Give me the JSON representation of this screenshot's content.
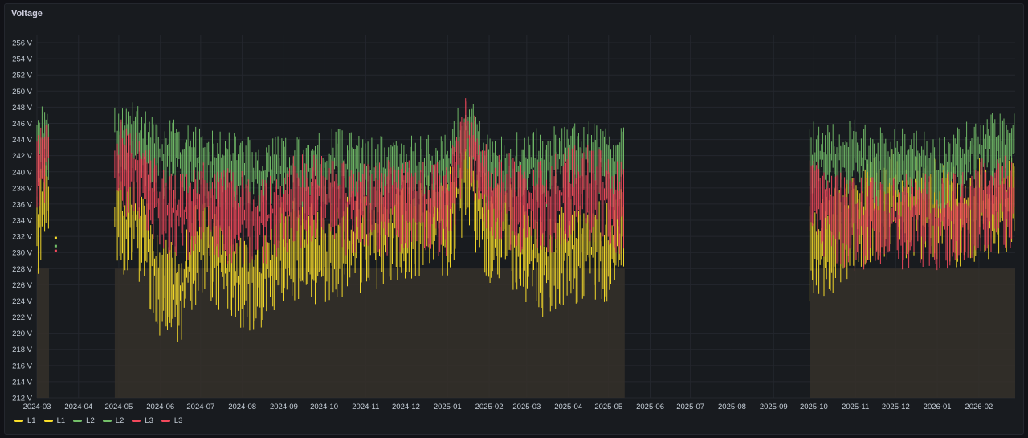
{
  "panel": {
    "title": "Voltage"
  },
  "colors": {
    "L1": "#fade2a",
    "L2": "#73bf69",
    "L3": "#f2495c",
    "fill": "#35302a",
    "grid": "#24272e",
    "bg": "#181b1f"
  },
  "chart_data": {
    "type": "line",
    "title": "Voltage",
    "xlabel": "",
    "ylabel": "",
    "y_unit": "V",
    "ylim": [
      212,
      257
    ],
    "y_ticks": [
      "256 V",
      "254 V",
      "252 V",
      "250 V",
      "248 V",
      "246 V",
      "244 V",
      "242 V",
      "240 V",
      "238 V",
      "236 V",
      "234 V",
      "232 V",
      "230 V",
      "228 V",
      "226 V",
      "224 V",
      "222 V",
      "220 V",
      "218 V",
      "216 V",
      "214 V",
      "212 V"
    ],
    "x_range": [
      "2024-03-01",
      "2026-02-28"
    ],
    "x_ticks": [
      "2024-03",
      "2024-04",
      "2024-05",
      "2024-06",
      "2024-07",
      "2024-08",
      "2024-09",
      "2024-10",
      "2024-11",
      "2024-12",
      "2025-01",
      "2025-02",
      "2025-03",
      "2025-04",
      "2025-05",
      "2025-06",
      "2025-07",
      "2025-08",
      "2025-09",
      "2025-10",
      "2025-11",
      "2025-12",
      "2026-01",
      "2026-02"
    ],
    "grid": true,
    "legend_placement": "bottom-left",
    "data_segments": [
      {
        "start": "2024-03-01",
        "end": "2024-03-10"
      },
      {
        "start": "2024-04-28",
        "end": "2025-05-13"
      },
      {
        "start": "2025-09-28",
        "end": "2026-02-28"
      }
    ],
    "series": [
      {
        "name": "L1",
        "x": [
          "2024-03-01",
          "2024-03-05",
          "2024-05-01",
          "2024-05-15",
          "2024-06-01",
          "2024-06-15",
          "2024-07-01",
          "2024-07-15",
          "2024-08-01",
          "2024-08-15",
          "2024-09-01",
          "2024-09-15",
          "2024-10-01",
          "2024-10-15",
          "2024-11-01",
          "2024-11-15",
          "2024-12-01",
          "2024-12-15",
          "2025-01-01",
          "2025-01-15",
          "2025-02-01",
          "2025-02-15",
          "2025-03-01",
          "2025-03-15",
          "2025-04-01",
          "2025-04-15",
          "2025-05-01",
          "2025-05-10",
          "2025-10-01",
          "2025-10-15",
          "2025-11-01",
          "2025-11-15",
          "2025-12-01",
          "2025-12-15",
          "2026-01-01",
          "2026-01-15",
          "2026-02-01",
          "2026-02-15"
        ],
        "y": [
          233,
          236,
          234,
          234,
          226,
          225,
          232,
          229,
          226,
          227,
          231,
          231,
          230,
          231,
          232,
          233,
          233,
          234,
          234,
          240,
          233,
          233,
          230,
          229,
          231,
          230,
          231,
          232,
          230,
          232,
          234,
          236,
          237,
          236,
          236,
          235,
          236,
          236
        ]
      },
      {
        "name": "L2",
        "x": [
          "2024-03-01",
          "2024-03-05",
          "2024-05-01",
          "2024-05-15",
          "2024-06-01",
          "2024-06-15",
          "2024-07-01",
          "2024-07-15",
          "2024-08-01",
          "2024-08-15",
          "2024-09-01",
          "2024-09-15",
          "2024-10-01",
          "2024-10-15",
          "2024-11-01",
          "2024-11-15",
          "2024-12-01",
          "2024-12-15",
          "2025-01-01",
          "2025-01-15",
          "2025-02-01",
          "2025-02-15",
          "2025-03-01",
          "2025-03-15",
          "2025-04-01",
          "2025-04-15",
          "2025-05-01",
          "2025-05-10",
          "2025-10-01",
          "2025-10-15",
          "2025-11-01",
          "2025-11-15",
          "2025-12-01",
          "2025-12-15",
          "2026-01-01",
          "2026-01-15",
          "2026-02-01",
          "2026-02-15"
        ],
        "y": [
          243,
          244,
          245,
          244,
          242,
          242,
          241,
          241,
          240,
          240,
          240,
          240,
          241,
          241,
          240,
          240,
          240,
          240,
          241,
          246,
          240,
          240,
          241,
          241,
          242,
          242,
          241,
          241,
          242,
          242,
          242,
          241,
          241,
          241,
          240,
          241,
          243,
          243
        ]
      },
      {
        "name": "L3",
        "x": [
          "2024-03-01",
          "2024-03-05",
          "2024-05-01",
          "2024-05-15",
          "2024-06-01",
          "2024-06-15",
          "2024-07-01",
          "2024-07-15",
          "2024-08-01",
          "2024-08-15",
          "2024-09-01",
          "2024-09-15",
          "2024-10-01",
          "2024-10-15",
          "2024-11-01",
          "2024-11-15",
          "2024-12-01",
          "2024-12-15",
          "2025-01-01",
          "2025-01-15",
          "2025-02-01",
          "2025-02-15",
          "2025-03-01",
          "2025-03-15",
          "2025-04-01",
          "2025-04-15",
          "2025-05-01",
          "2025-05-10",
          "2025-10-01",
          "2025-10-15",
          "2025-11-01",
          "2025-11-15",
          "2025-12-01",
          "2025-12-15",
          "2026-01-01",
          "2026-01-15",
          "2026-02-01",
          "2026-02-15"
        ],
        "y": [
          240,
          242,
          241,
          241,
          236,
          235,
          236,
          235,
          235,
          234,
          236,
          237,
          237,
          236,
          236,
          236,
          236,
          236,
          236,
          245,
          237,
          237,
          236,
          236,
          238,
          238,
          237,
          236,
          236,
          235,
          234,
          234,
          234,
          235,
          234,
          235,
          236,
          237
        ]
      }
    ],
    "isolated_points": [
      {
        "series": "L1",
        "x": "2024-03-15",
        "y": 231.8
      },
      {
        "series": "L2",
        "x": "2024-03-15",
        "y": 230.8
      },
      {
        "series": "L3",
        "x": "2024-03-15",
        "y": 230.2
      }
    ]
  },
  "legend": [
    {
      "label": "L1",
      "color": "#fade2a"
    },
    {
      "label": "L1",
      "color": "#fade2a"
    },
    {
      "label": "L2",
      "color": "#73bf69"
    },
    {
      "label": "L2",
      "color": "#73bf69"
    },
    {
      "label": "L3",
      "color": "#f2495c"
    },
    {
      "label": "L3",
      "color": "#f2495c"
    }
  ]
}
